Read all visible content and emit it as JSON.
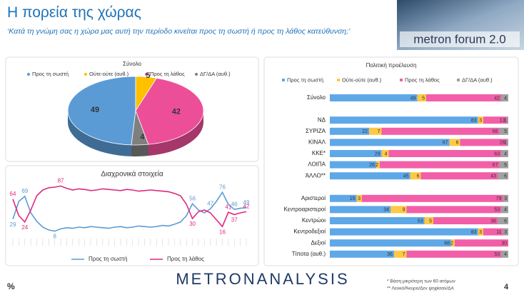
{
  "header": {
    "title": "Η πορεία της χώρας",
    "subtitle": "‘Κατά τη γνώμη σας η χώρα μας αυτή την περίοδο κινείται προς τη σωστή ή προς τη λάθος κατεύθυνση;’",
    "logo": "metron forum 2.0"
  },
  "chart_data": [
    {
      "type": "pie",
      "title": "Σύνολο",
      "categories": [
        "Προς τη σωστή",
        "Ούτε-ούτε (αυθ.)",
        "Προς τη λάθος",
        "ΔΓ/ΔΑ (αυθ.)"
      ],
      "values": [
        49,
        5,
        42,
        4
      ],
      "colors": [
        "#5b9bd5",
        "#ffc000",
        "#ec4f98",
        "#7f7f7f"
      ]
    },
    {
      "type": "line",
      "title": "Διαχρονικά στοιχεία",
      "ylim": [
        0,
        100
      ],
      "categories": [
        null,
        null,
        null,
        null,
        null,
        null,
        null,
        null,
        null,
        null,
        null,
        null,
        null,
        null,
        null,
        null,
        null,
        null,
        null,
        null,
        null,
        null,
        null,
        null,
        null,
        null,
        null,
        null,
        null,
        null,
        null,
        null,
        null,
        null,
        null,
        null,
        null,
        null,
        null,
        null
      ],
      "series": [
        {
          "name": "Προς τη σωστή",
          "color": "#5b9bd5",
          "values": [
            29,
            60,
            69,
            40,
            25,
            15,
            10,
            8,
            12,
            14,
            13,
            15,
            14,
            16,
            15,
            14,
            13,
            15,
            16,
            14,
            15,
            17,
            16,
            15,
            16,
            18,
            17,
            20,
            24,
            35,
            56,
            45,
            40,
            47,
            60,
            76,
            55,
            46,
            48,
            49
          ]
        },
        {
          "name": "Προς τη λάθος",
          "color": "#e0287f",
          "values": [
            64,
            35,
            24,
            45,
            70,
            80,
            84,
            85,
            87,
            83,
            80,
            82,
            81,
            79,
            80,
            82,
            81,
            80,
            79,
            81,
            80,
            78,
            79,
            80,
            79,
            78,
            77,
            74,
            70,
            55,
            30,
            42,
            45,
            40,
            28,
            16,
            41,
            37,
            40,
            42
          ]
        }
      ]
    },
    {
      "type": "stacked_bar_h",
      "title": "Πολιτική προέλευση",
      "xlim": [
        0,
        100
      ],
      "categories": [
        "Σύνολο",
        "ΝΔ",
        "ΣΥΡΙΖΑ",
        "ΚΙΝΑΛ",
        "ΚΚΕ*",
        "ΛΟΙΠΑ",
        "ΆΛΛΟ**",
        "Αριστεροί",
        "Κεντροαριστεροί",
        "Κεντρώοι",
        "Κεντροδεξιοί",
        "Δεξιοί",
        "Τίποτα (αυθ.)"
      ],
      "series": [
        {
          "name": "Προς τη σωστή",
          "color": "#5fa8e8",
          "values": [
            49,
            83,
            22,
            67,
            29,
            26,
            45,
            15,
            34,
            53,
            83,
            68,
            36
          ]
        },
        {
          "name": "Ούτε-ούτε (αυθ.)",
          "color": "#ffc845",
          "values": [
            5,
            3,
            7,
            6,
            4,
            2,
            6,
            3,
            9,
            5,
            3,
            2,
            7
          ]
        },
        {
          "name": "Προς τη λάθος",
          "color": "#f25fa8",
          "values": [
            42,
            13,
            66,
            26,
            63,
            67,
            43,
            79,
            53,
            36,
            11,
            30,
            53
          ]
        },
        {
          "name": "ΔΓ/ΔΑ (αυθ.)",
          "color": "#a0a0a0",
          "values": [
            4,
            1,
            5,
            1,
            4,
            5,
            6,
            3,
            4,
            6,
            3,
            0,
            4
          ]
        }
      ]
    }
  ],
  "footer": {
    "unit": "%",
    "brand": "METRONANALYSIS",
    "notes": [
      "* Βάση μικρότερη των 60 ατόμων",
      "** Λευκό/Άκυρο/Δεν ψηφίσαν/ΔΑ"
    ],
    "page": "4"
  }
}
